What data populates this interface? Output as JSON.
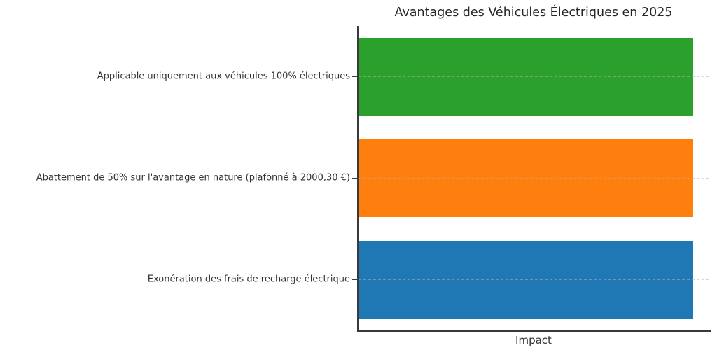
{
  "chart": {
    "title": "Avantages des Véhicules Électriques en 2025",
    "xlabel": "Impact"
  },
  "chart_data": {
    "type": "bar",
    "orientation": "horizontal",
    "title": "Avantages des Véhicules Électriques en 2025",
    "xlabel": "Impact",
    "ylabel": "",
    "categories": [
      "Applicable uniquement aux véhicules 100% électriques",
      "Abattement de 50% sur l'avantage en nature (plafonné à 2000,30 €)",
      "Exonération des frais de recharge électrique"
    ],
    "values": [
      1,
      1,
      1
    ],
    "colors": [
      "#2ca02c",
      "#ff7f0e",
      "#1f77b4"
    ],
    "xlim": [
      0,
      1.052
    ],
    "x_tick_labels": [],
    "legend": null,
    "grid": {
      "axis": "y",
      "style": "dashed",
      "color": "#b0b0b0",
      "drawn_above_bars": true
    },
    "spines": {
      "left": true,
      "bottom": true,
      "top": false,
      "right": false,
      "color": "#3a3a3a"
    },
    "background_color": "#ffffff"
  }
}
